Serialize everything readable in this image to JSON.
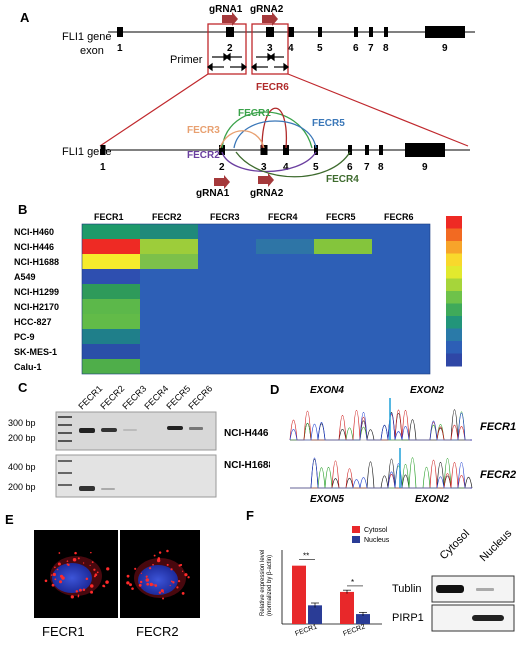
{
  "panels": {
    "A": {
      "letter": "A",
      "gene_label": "FLI1 gene",
      "exon_label": "exon",
      "exon_numbers": [
        "1",
        "2",
        "3",
        "4",
        "5",
        "6",
        "7",
        "8",
        "9"
      ],
      "grna1": "gRNA1",
      "grna2": "gRNA2",
      "primer_label": "Primer",
      "gene_label_lower": "FLI1 gene",
      "lower_exon_numbers": [
        "1",
        "2",
        "3",
        "4",
        "5",
        "6",
        "7",
        "8",
        "9"
      ],
      "fecr_labels": [
        {
          "name": "FECR1",
          "color": "#3aa24a"
        },
        {
          "name": "FECR2",
          "color": "#6b3fa0"
        },
        {
          "name": "FECR3",
          "color": "#e8a070"
        },
        {
          "name": "FECR4",
          "color": "#3e6b2e"
        },
        {
          "name": "FECR5",
          "color": "#3a77b8"
        },
        {
          "name": "FECR6",
          "color": "#b02a2a"
        }
      ],
      "grna1_lower": "gRNA1",
      "grna2_lower": "gRNA2",
      "colors": {
        "box": "#c0282d",
        "arrow": "#a5393b"
      }
    },
    "B": {
      "letter": "B",
      "columns": [
        "FECR1",
        "FECR2",
        "FECR3",
        "FECR4",
        "FECR5",
        "FECR6"
      ],
      "rows": [
        {
          "name": "NCI-H460",
          "colors": [
            "#1e9a6a",
            "#1f8a7a",
            "#2d5fb6",
            "#2d5fb6",
            "#2d5fb6",
            "#2d5fb6"
          ]
        },
        {
          "name": "NCI-H446",
          "colors": [
            "#ee2a24",
            "#9dcd3a",
            "#2d5fb6",
            "#2e75a6",
            "#84c53c",
            "#2d5fb6"
          ]
        },
        {
          "name": "NCI-H1688",
          "colors": [
            "#f6ec2c",
            "#7cc04a",
            "#2d5fb6",
            "#2d5fb6",
            "#2d5fb6",
            "#2d5fb6"
          ]
        },
        {
          "name": "A549",
          "colors": [
            "#2e4fb0",
            "#2d5fb6",
            "#2d5fb6",
            "#2d5fb6",
            "#2d5fb6",
            "#2d5fb6"
          ]
        },
        {
          "name": "NCI-H1299",
          "colors": [
            "#2e9a5a",
            "#2d5fb6",
            "#2d5fb6",
            "#2d5fb6",
            "#2d5fb6",
            "#2d5fb6"
          ]
        },
        {
          "name": "NCI-H2170",
          "colors": [
            "#5cb84a",
            "#2d5fb6",
            "#2d5fb6",
            "#2d5fb6",
            "#2d5fb6",
            "#2d5fb6"
          ]
        },
        {
          "name": "HCC-827",
          "colors": [
            "#62bb48",
            "#2d5fb6",
            "#2d5fb6",
            "#2d5fb6",
            "#2d5fb6",
            "#2d5fb6"
          ]
        },
        {
          "name": "PC-9",
          "colors": [
            "#1f7f8a",
            "#2d5fb6",
            "#2d5fb6",
            "#2d5fb6",
            "#2d5fb6",
            "#2d5fb6"
          ]
        },
        {
          "name": "SK-MES-1",
          "colors": [
            "#2a4fa8",
            "#2d5fb6",
            "#2d5fb6",
            "#2d5fb6",
            "#2d5fb6",
            "#2d5fb6"
          ]
        },
        {
          "name": "Calu-1",
          "colors": [
            "#4fae4a",
            "#2d5fb6",
            "#2d5fb6",
            "#2d5fb6",
            "#2d5fb6",
            "#2d5fb6"
          ]
        }
      ],
      "colorbar": [
        "#ee2a24",
        "#f26a22",
        "#f7a42a",
        "#f9d82c",
        "#e2e92e",
        "#a6d53a",
        "#6ec24a",
        "#3faa5a",
        "#22957a",
        "#2a7aa8",
        "#2d5fb6",
        "#2f47a6"
      ]
    },
    "C": {
      "letter": "C",
      "lanes": [
        "FECR1",
        "FECR2",
        "FECR3",
        "FECR4",
        "FECR5",
        "FECR6"
      ],
      "gel1_label": "NCI-H446",
      "gel2_label": "NCI-H1688",
      "gel1_markers": [
        "300 bp",
        "200 bp"
      ],
      "gel2_markers": [
        "400 bp",
        "200 bp"
      ]
    },
    "D": {
      "letter": "D",
      "top_left": "EXON4",
      "top_right": "EXON2",
      "top_name": "FECR1",
      "bottom_name": "FECR2",
      "bottom_left": "EXON5",
      "bottom_right": "EXON2"
    },
    "E": {
      "letter": "E",
      "cell1": "FECR1",
      "cell2": "FECR2"
    },
    "F": {
      "letter": "F",
      "ylabel": "Relative expression level",
      "ylabel2": "(normalized by β-actin)",
      "legend": [
        {
          "name": "Cytosol",
          "color": "#e8282a"
        },
        {
          "name": "Nucleus",
          "color": "#2a3c96"
        }
      ],
      "sig1": "**",
      "sig2": "*",
      "blot_headers": [
        "Cytosol",
        "Nucleus"
      ],
      "blot_rows": [
        "Tublin",
        "PIRP1"
      ]
    }
  },
  "chart_data": {
    "type": "bar",
    "categories": [
      "FECR1",
      "FECR2"
    ],
    "series": [
      {
        "name": "Cytosol",
        "values": [
          1.0,
          0.55
        ]
      },
      {
        "name": "Nucleus",
        "values": [
          0.32,
          0.17
        ]
      }
    ],
    "errors": [
      [
        0.0,
        0.03
      ],
      [
        0.04,
        0.03
      ]
    ],
    "ylim": [
      0,
      1.2
    ],
    "xlabel": "",
    "ylabel": "Relative expression level (normalized by β-actin)"
  }
}
